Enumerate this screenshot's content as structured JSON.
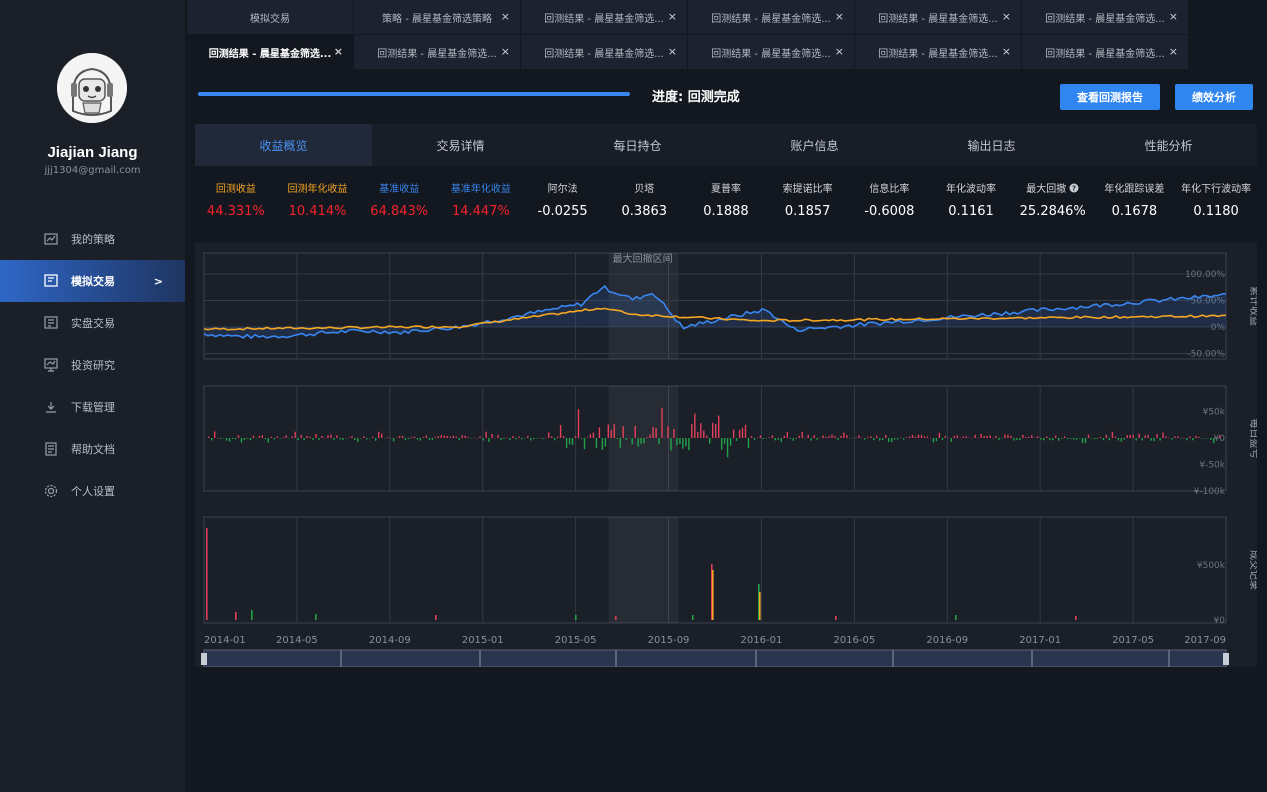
{
  "user": {
    "name": "Jiajian Jiang",
    "email": "jjj1304@gmail.com"
  },
  "nav": [
    {
      "label": "我的策略",
      "icon": "strategy-icon",
      "active": false
    },
    {
      "label": "模拟交易",
      "icon": "sim-trade-icon",
      "active": true,
      "arrow": ">"
    },
    {
      "label": "实盘交易",
      "icon": "live-trade-icon",
      "active": false
    },
    {
      "label": "投资研究",
      "icon": "research-icon",
      "active": false
    },
    {
      "label": "下载管理",
      "icon": "download-icon",
      "active": false
    },
    {
      "label": "帮助文档",
      "icon": "docs-icon",
      "active": false
    },
    {
      "label": "个人设置",
      "icon": "gear-icon",
      "active": false
    }
  ],
  "tabs_row1": [
    {
      "label": "模拟交易",
      "closable": false
    },
    {
      "label": "策略 - 晨星基金筛选策略",
      "closable": true
    },
    {
      "label": "回测结果 - 晨星基金筛选...",
      "closable": true
    },
    {
      "label": "回测结果 - 晨星基金筛选...",
      "closable": true
    },
    {
      "label": "回测结果 - 晨星基金筛选...",
      "closable": true
    },
    {
      "label": "回测结果 - 晨星基金筛选...",
      "closable": true
    }
  ],
  "tabs_row2": [
    {
      "label": "回测结果 - 晨星基金筛选...",
      "closable": true,
      "active": true
    },
    {
      "label": "回测结果 - 晨星基金筛选...",
      "closable": true
    },
    {
      "label": "回测结果 - 晨星基金筛选...",
      "closable": true
    },
    {
      "label": "回测结果 - 晨星基金筛选...",
      "closable": true
    },
    {
      "label": "回测结果 - 晨星基金筛选...",
      "closable": true
    },
    {
      "label": "回测结果 - 晨星基金筛选...",
      "closable": true
    }
  ],
  "close_glyph": "×",
  "progress": {
    "text": "进度: 回测完成",
    "value": 1.0
  },
  "buttons": {
    "report": "查看回测报告",
    "analysis": "绩效分析"
  },
  "subtabs": [
    "收益概览",
    "交易详情",
    "每日持仓",
    "账户信息",
    "输出日志",
    "性能分析"
  ],
  "metrics": [
    {
      "label": "回测收益",
      "value": "44.331%",
      "label_color": "#f5a623",
      "value_color": "#f5222d"
    },
    {
      "label": "回测年化收益",
      "value": "10.414%",
      "label_color": "#f5a623",
      "value_color": "#f5222d"
    },
    {
      "label": "基准收益",
      "value": "64.843%",
      "label_color": "#3a86f0",
      "value_color": "#f5222d"
    },
    {
      "label": "基准年化收益",
      "value": "14.447%",
      "label_color": "#3a86f0",
      "value_color": "#f5222d"
    },
    {
      "label": "阿尔法",
      "value": "-0.0255"
    },
    {
      "label": "贝塔",
      "value": "0.3863"
    },
    {
      "label": "夏普率",
      "value": "0.1888"
    },
    {
      "label": "索提诺比率",
      "value": "0.1857"
    },
    {
      "label": "信息比率",
      "value": "-0.6008"
    },
    {
      "label": "年化波动率",
      "value": "0.1161"
    },
    {
      "label": "最大回撤",
      "value": "25.2846%",
      "help": true
    },
    {
      "label": "年化跟踪误差",
      "value": "0.1678"
    },
    {
      "label": "年化下行波动率",
      "value": "0.1180"
    }
  ],
  "chart": {
    "drawdown_label": "最大回撤区间",
    "panel_titles": [
      "累计收益",
      "每日盈亏",
      "成交记录"
    ],
    "returns_ticks": [
      "100.00%",
      "50.00%",
      "0%",
      "-50.00%"
    ],
    "pnl_ticks": [
      "¥50k",
      "¥0",
      "¥-50k",
      "¥-100k"
    ],
    "volume_ticks": [
      "¥500k",
      "¥0"
    ],
    "x_ticks": [
      "2014-01",
      "2014-05",
      "2014-09",
      "2015-01",
      "2015-05",
      "2015-09",
      "2016-01",
      "2016-05",
      "2016-09",
      "2017-01",
      "2017-05",
      "2017-09"
    ],
    "colors": {
      "strategy": "#f5a623",
      "benchmark": "#3a86f0",
      "profit": "#e0405a",
      "loss": "#22a34a"
    }
  }
}
